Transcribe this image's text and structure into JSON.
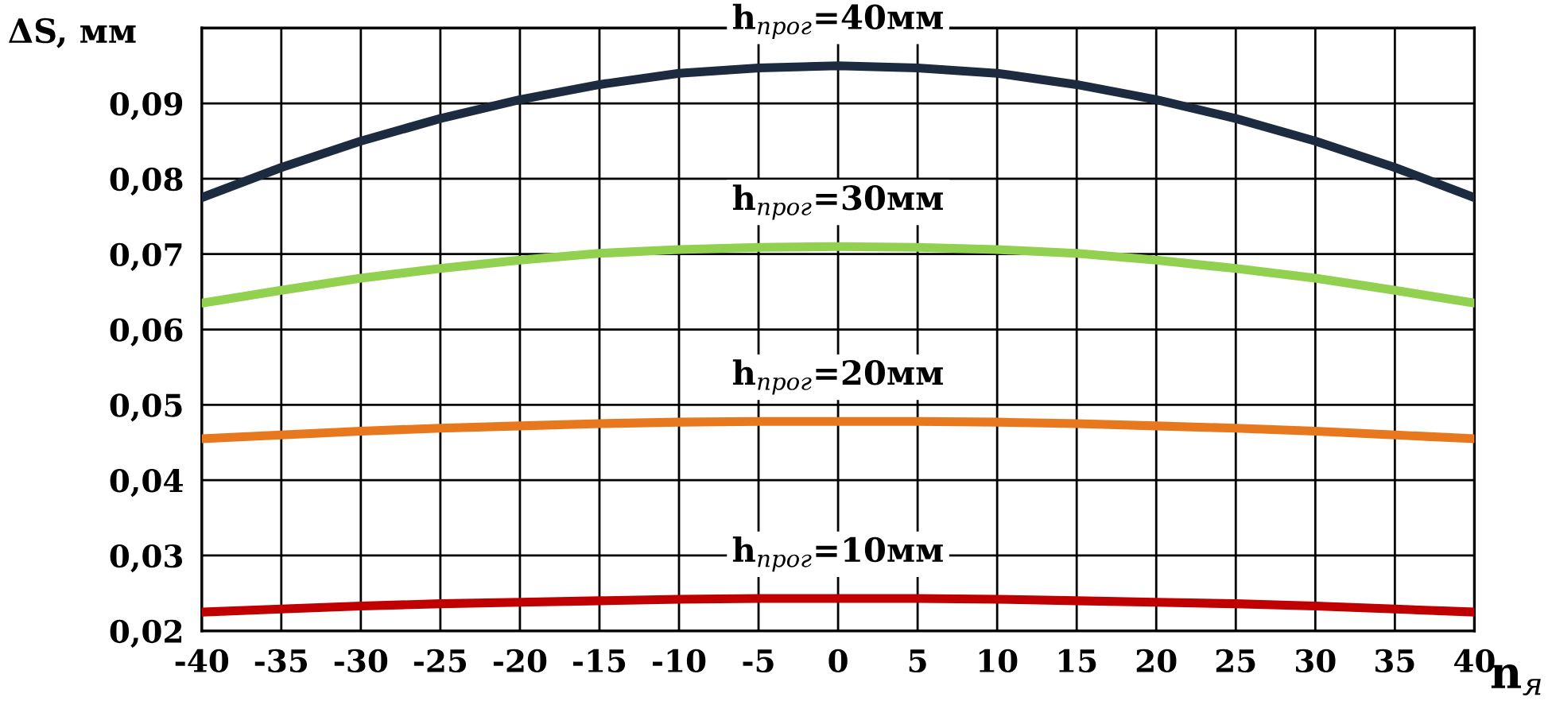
{
  "chart_data": {
    "type": "line",
    "ylabel": "ΔS, мм",
    "xlabel": "n$_{я}$",
    "x": [
      -40,
      -35,
      -30,
      -25,
      -20,
      -15,
      -10,
      -5,
      0,
      5,
      10,
      15,
      20,
      25,
      30,
      35,
      40
    ],
    "xlim": [
      -40,
      40
    ],
    "xticks": [
      -40,
      -35,
      -30,
      -25,
      -20,
      -15,
      -10,
      -5,
      0,
      5,
      10,
      15,
      20,
      25,
      30,
      35,
      40
    ],
    "ylim": [
      0.02,
      0.1
    ],
    "yticks": [
      {
        "value": 0.02,
        "label": "0,02"
      },
      {
        "value": 0.03,
        "label": "0,03"
      },
      {
        "value": 0.04,
        "label": "0,04"
      },
      {
        "value": 0.05,
        "label": "0,05"
      },
      {
        "value": 0.06,
        "label": "0,06"
      },
      {
        "value": 0.07,
        "label": "0,07"
      },
      {
        "value": 0.08,
        "label": "0,08"
      },
      {
        "value": 0.09,
        "label": "0,09"
      },
      {
        "value": 0.1,
        "label": null
      }
    ],
    "grid": true,
    "legend": false,
    "marker": "none",
    "line_style": "solid",
    "series": [
      {
        "name": "h$_{прог}$=40мм",
        "color": "#1c2b3f",
        "values": [
          0.0775,
          0.0815,
          0.085,
          0.088,
          0.0905,
          0.0925,
          0.094,
          0.0947,
          0.095,
          0.0947,
          0.094,
          0.0925,
          0.0905,
          0.088,
          0.085,
          0.0815,
          0.0775
        ]
      },
      {
        "name": "h$_{прог}$=30мм",
        "color": "#92d050",
        "values": [
          0.0635,
          0.0652,
          0.0668,
          0.0681,
          0.0692,
          0.0701,
          0.0706,
          0.0709,
          0.071,
          0.0709,
          0.0706,
          0.0701,
          0.0692,
          0.0681,
          0.0668,
          0.0652,
          0.0635
        ]
      },
      {
        "name": "h$_{прог}$=20мм",
        "color": "#e8781e",
        "values": [
          0.0455,
          0.046,
          0.0465,
          0.0469,
          0.0472,
          0.0475,
          0.0477,
          0.0478,
          0.0478,
          0.0478,
          0.0477,
          0.0475,
          0.0472,
          0.0469,
          0.0465,
          0.046,
          0.0455
        ]
      },
      {
        "name": "h$_{прог}$=10мм",
        "color": "#c00000",
        "values": [
          0.0225,
          0.0229,
          0.0233,
          0.0236,
          0.0238,
          0.024,
          0.0242,
          0.0243,
          0.0243,
          0.0243,
          0.0242,
          0.024,
          0.0238,
          0.0236,
          0.0233,
          0.0229,
          0.0225
        ]
      }
    ]
  }
}
